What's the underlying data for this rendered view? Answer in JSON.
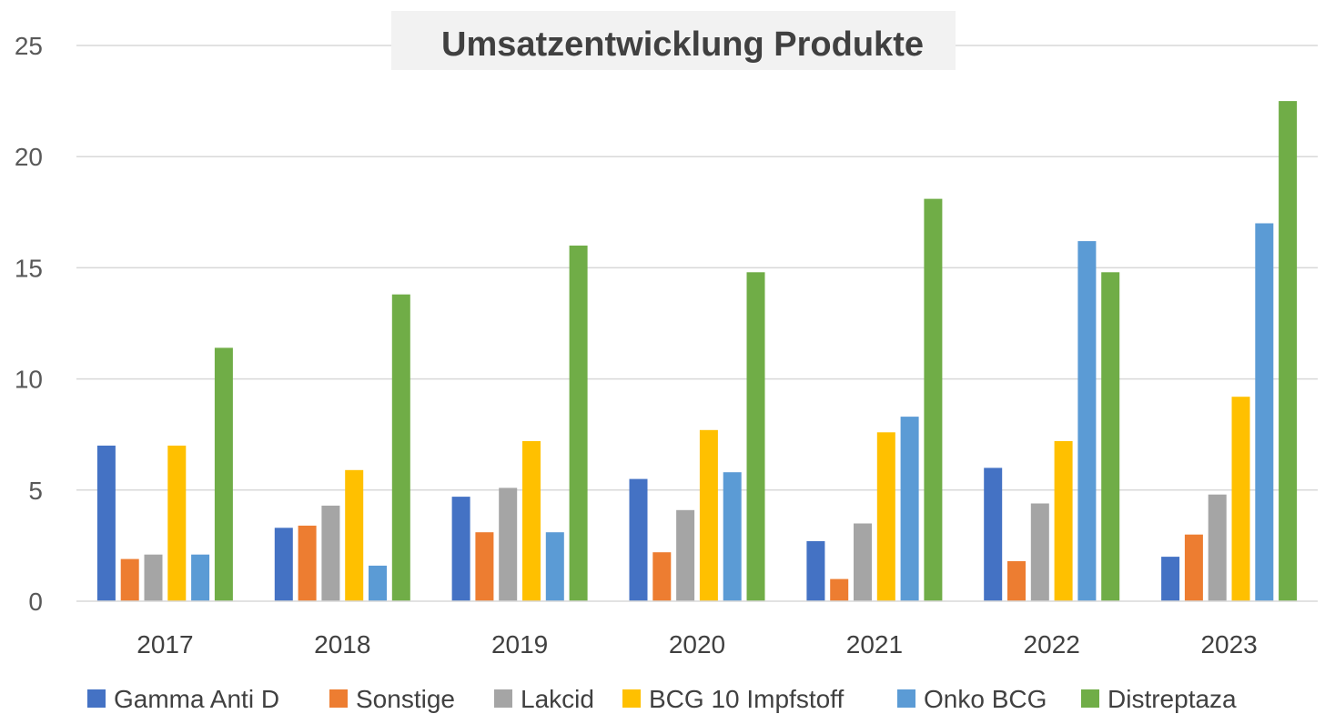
{
  "chart_data": {
    "type": "bar",
    "title": "Umsatzentwicklung Produkte",
    "xlabel": "",
    "ylabel": "",
    "ylim": [
      0,
      25
    ],
    "yticks": [
      0,
      5,
      10,
      15,
      20,
      25
    ],
    "grid": true,
    "legend_position": "bottom",
    "categories": [
      "2017",
      "2018",
      "2019",
      "2020",
      "2021",
      "2022",
      "2023"
    ],
    "series": [
      {
        "name": "Gamma Anti D",
        "color": "#4472C4",
        "values": [
          7.0,
          3.3,
          4.7,
          5.5,
          2.7,
          6.0,
          2.0
        ]
      },
      {
        "name": "Sonstige",
        "color": "#ED7D31",
        "values": [
          1.9,
          3.4,
          3.1,
          2.2,
          1.0,
          1.8,
          3.0
        ]
      },
      {
        "name": "Lakcid",
        "color": "#A5A5A5",
        "values": [
          2.1,
          4.3,
          5.1,
          4.1,
          3.5,
          4.4,
          4.8
        ]
      },
      {
        "name": "BCG 10 Impfstoff",
        "color": "#FFC000",
        "values": [
          7.0,
          5.9,
          7.2,
          7.7,
          7.6,
          7.2,
          9.2
        ]
      },
      {
        "name": "Onko BCG",
        "color": "#5B9BD5",
        "values": [
          2.1,
          1.6,
          3.1,
          5.8,
          8.3,
          16.2,
          17.0
        ]
      },
      {
        "name": "Distreptaza",
        "color": "#70AD47",
        "values": [
          11.4,
          13.8,
          16.0,
          14.8,
          18.1,
          14.8,
          22.5
        ]
      }
    ]
  }
}
